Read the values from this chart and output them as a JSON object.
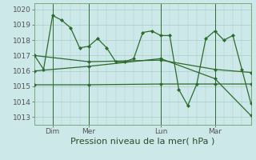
{
  "background_color": "#cde8e8",
  "grid_color": "#aacccc",
  "line_color": "#2d6b2d",
  "series1_x": [
    0,
    1,
    2,
    3,
    4,
    5,
    6,
    7,
    8,
    9,
    10,
    11,
    12,
    13,
    14,
    15,
    16,
    17,
    18,
    19,
    20,
    21,
    22,
    23,
    24
  ],
  "series1_y": [
    1017.0,
    1016.1,
    1019.6,
    1019.3,
    1018.8,
    1017.5,
    1017.6,
    1018.1,
    1017.5,
    1016.6,
    1016.6,
    1016.8,
    1018.5,
    1018.6,
    1018.3,
    1018.3,
    1014.8,
    1013.75,
    1015.15,
    1018.1,
    1018.6,
    1018.0,
    1018.3,
    1016.1,
    1013.9
  ],
  "series2_x": [
    0,
    6,
    14,
    20,
    24
  ],
  "series2_y": [
    1015.1,
    1015.1,
    1015.15,
    1015.15,
    1015.15
  ],
  "series3_x": [
    0,
    6,
    14,
    20,
    24
  ],
  "series3_y": [
    1017.0,
    1016.6,
    1016.7,
    1016.1,
    1015.9
  ],
  "series4_x": [
    0,
    6,
    14,
    20,
    24
  ],
  "series4_y": [
    1016.0,
    1016.3,
    1016.8,
    1015.5,
    1013.1
  ],
  "xtick_positions": [
    2,
    6,
    14,
    20
  ],
  "xtick_labels": [
    "Dim",
    "Mer",
    "Lun",
    "Mar"
  ],
  "vline_positions": [
    2,
    6,
    14,
    20
  ],
  "xlim": [
    0,
    24
  ],
  "ylim": [
    1012.5,
    1020.4
  ],
  "ytick_values": [
    1013,
    1014,
    1015,
    1016,
    1017,
    1018,
    1019,
    1020
  ],
  "xlabel": "Pression niveau de la mer( hPa )",
  "xlabel_fontsize": 8,
  "tick_fontsize": 6.5
}
